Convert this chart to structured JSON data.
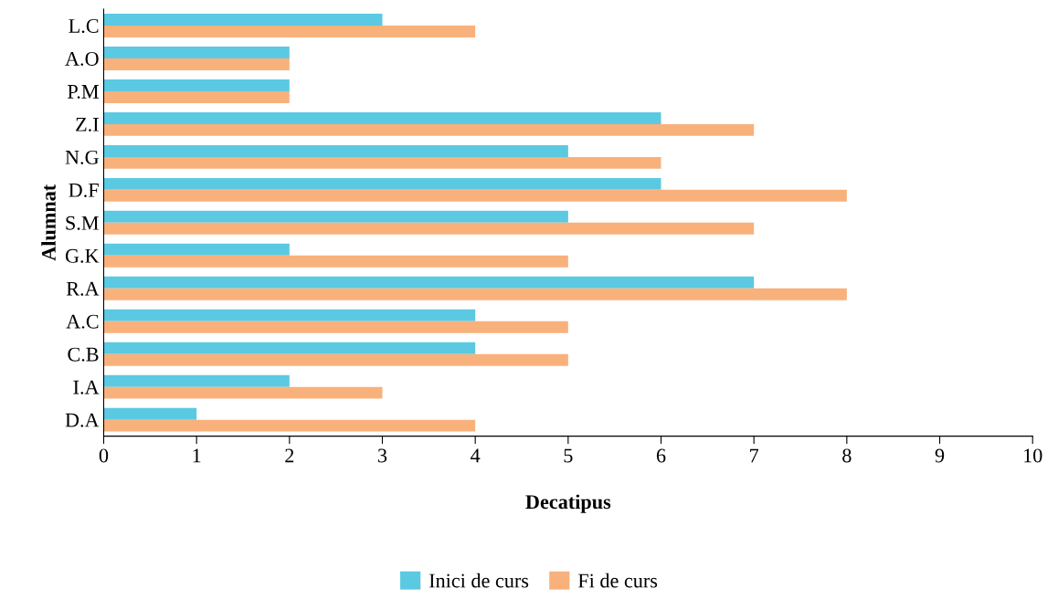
{
  "chart_data": {
    "type": "bar",
    "orientation": "horizontal",
    "xlabel": "Decatipus",
    "ylabel": "Alumnat",
    "categories": [
      "L.C",
      "A.O",
      "P.M",
      "Z.I",
      "N.G",
      "D.F",
      "S.M",
      "G.K",
      "R.A",
      "A.C",
      "C.B",
      "I.A",
      "D.A"
    ],
    "series": [
      {
        "name": "Inici de curs",
        "color": "#5bc9e1",
        "values": [
          3,
          2,
          2,
          6,
          5,
          6,
          5,
          2,
          7,
          4,
          4,
          2,
          1
        ]
      },
      {
        "name": "Fi de curs",
        "color": "#f9b17c",
        "values": [
          4,
          2,
          2,
          7,
          6,
          8,
          7,
          5,
          8,
          5,
          5,
          3,
          4
        ]
      }
    ],
    "xlim": [
      0,
      10
    ],
    "xticks": [
      0,
      1,
      2,
      3,
      4,
      5,
      6,
      7,
      8,
      9,
      10
    ],
    "grid": false,
    "legend": "bottom"
  }
}
